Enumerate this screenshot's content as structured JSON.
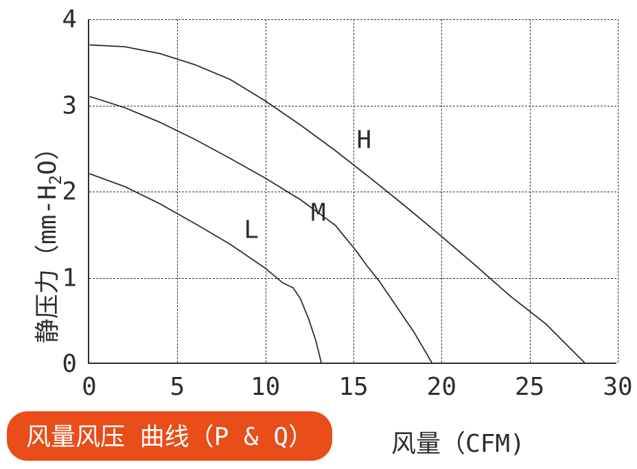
{
  "chart": {
    "type": "line",
    "background_color": "#ffffff",
    "axis_color": "#2d2d2d",
    "grid_color": "#2d2d2d",
    "line_color": "#2d2d2d",
    "line_width": 1.8,
    "y_label": "静压力（mm-H₂O）",
    "x_label": "风量（CFM)",
    "title_pill": "风量风压 曲线（P & Q）",
    "pill_bg": "#e84d1a",
    "pill_fg": "#ffffff",
    "xlim": [
      0,
      30
    ],
    "ylim": [
      0,
      4
    ],
    "x_ticks": [
      0,
      5,
      10,
      15,
      20,
      25,
      30
    ],
    "y_ticks": [
      0,
      1,
      2,
      3,
      4
    ],
    "tick_fontsize": 36,
    "label_fontsize": 36,
    "series": [
      {
        "name": "H",
        "label_pos": [
          15.6,
          2.6
        ],
        "data": [
          [
            0,
            3.7
          ],
          [
            2,
            3.68
          ],
          [
            4,
            3.6
          ],
          [
            6,
            3.47
          ],
          [
            8,
            3.3
          ],
          [
            10,
            3.05
          ],
          [
            12,
            2.77
          ],
          [
            14,
            2.47
          ],
          [
            16,
            2.15
          ],
          [
            18,
            1.82
          ],
          [
            20,
            1.48
          ],
          [
            22,
            1.13
          ],
          [
            24,
            0.77
          ],
          [
            26,
            0.45
          ],
          [
            28.2,
            0.0
          ]
        ]
      },
      {
        "name": "M",
        "label_pos": [
          13,
          1.75
        ],
        "data": [
          [
            0,
            3.1
          ],
          [
            2,
            2.97
          ],
          [
            4,
            2.8
          ],
          [
            6,
            2.6
          ],
          [
            8,
            2.38
          ],
          [
            10,
            2.15
          ],
          [
            12,
            1.9
          ],
          [
            14,
            1.6
          ],
          [
            15.2,
            1.3
          ],
          [
            15.8,
            1.13
          ],
          [
            16.5,
            0.95
          ],
          [
            17.5,
            0.65
          ],
          [
            18.5,
            0.35
          ],
          [
            19.5,
            0.0
          ]
        ]
      },
      {
        "name": "L",
        "label_pos": [
          9.2,
          1.55
        ],
        "data": [
          [
            0,
            2.2
          ],
          [
            2,
            2.05
          ],
          [
            4,
            1.85
          ],
          [
            6,
            1.62
          ],
          [
            8,
            1.38
          ],
          [
            10,
            1.1
          ],
          [
            11,
            0.93
          ],
          [
            11.6,
            0.87
          ],
          [
            12,
            0.75
          ],
          [
            12.5,
            0.5
          ],
          [
            12.9,
            0.25
          ],
          [
            13.2,
            0.0
          ]
        ]
      }
    ]
  }
}
